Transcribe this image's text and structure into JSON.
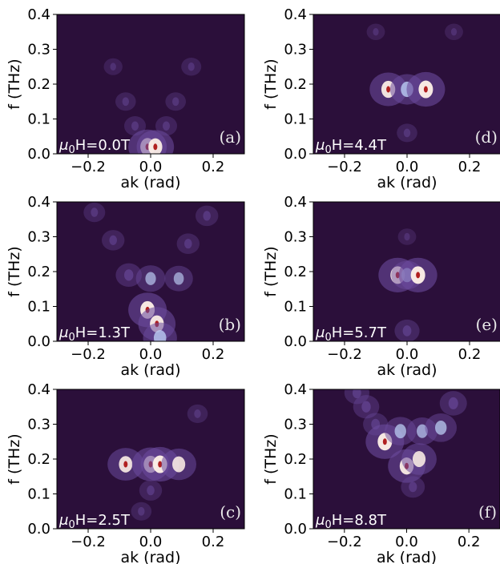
{
  "chart_data": [
    {
      "type": "heatmap",
      "panel": "(a)",
      "field": "0.0T",
      "xlabel": "ak (rad)",
      "ylabel": "f (THz)",
      "xlim": [
        -0.3,
        0.3
      ],
      "ylim": [
        0.0,
        0.4
      ],
      "xticks": [
        "−0.2",
        "0.0",
        "0.2"
      ],
      "yticks": [
        "0.0",
        "0.1",
        "0.2",
        "0.3",
        "0.4"
      ],
      "peaks": [
        {
          "x": -0.01,
          "y": 0.02,
          "intensity": 1.0
        },
        {
          "x": 0.015,
          "y": 0.02,
          "intensity": 0.95
        },
        {
          "x": -0.05,
          "y": 0.08,
          "intensity": 0.25
        },
        {
          "x": 0.05,
          "y": 0.08,
          "intensity": 0.25
        },
        {
          "x": -0.08,
          "y": 0.15,
          "intensity": 0.2
        },
        {
          "x": 0.08,
          "y": 0.15,
          "intensity": 0.2
        },
        {
          "x": 0.13,
          "y": 0.25,
          "intensity": 0.18
        },
        {
          "x": -0.12,
          "y": 0.25,
          "intensity": 0.12
        }
      ]
    },
    {
      "type": "heatmap",
      "panel": "(b)",
      "field": "1.3T",
      "xlabel": "ak (rad)",
      "ylabel": "f (THz)",
      "xlim": [
        -0.3,
        0.3
      ],
      "ylim": [
        0.0,
        0.4
      ],
      "xticks": [
        "−0.2",
        "0.0",
        "0.2"
      ],
      "yticks": [
        "0.0",
        "0.1",
        "0.2",
        "0.3",
        "0.4"
      ],
      "peaks": [
        {
          "x": -0.01,
          "y": 0.09,
          "intensity": 1.0
        },
        {
          "x": 0.02,
          "y": 0.05,
          "intensity": 0.95
        },
        {
          "x": 0.03,
          "y": 0.01,
          "intensity": 0.8
        },
        {
          "x": -0.07,
          "y": 0.19,
          "intensity": 0.45
        },
        {
          "x": 0.0,
          "y": 0.18,
          "intensity": 0.6
        },
        {
          "x": 0.09,
          "y": 0.18,
          "intensity": 0.55
        },
        {
          "x": -0.12,
          "y": 0.29,
          "intensity": 0.3
        },
        {
          "x": 0.12,
          "y": 0.28,
          "intensity": 0.3
        },
        {
          "x": 0.18,
          "y": 0.36,
          "intensity": 0.3
        },
        {
          "x": -0.18,
          "y": 0.37,
          "intensity": 0.25
        }
      ]
    },
    {
      "type": "heatmap",
      "panel": "(c)",
      "field": "2.5T",
      "xlabel": "ak (rad)",
      "ylabel": "f (THz)",
      "xlim": [
        -0.3,
        0.3
      ],
      "ylim": [
        0.0,
        0.4
      ],
      "xticks": [
        "−0.2",
        "0.0",
        "0.2"
      ],
      "yticks": [
        "0.0",
        "0.1",
        "0.2",
        "0.3",
        "0.4"
      ],
      "peaks": [
        {
          "x": -0.08,
          "y": 0.185,
          "intensity": 0.9
        },
        {
          "x": 0.0,
          "y": 0.185,
          "intensity": 0.95
        },
        {
          "x": 0.03,
          "y": 0.185,
          "intensity": 1.0
        },
        {
          "x": 0.09,
          "y": 0.185,
          "intensity": 0.85
        },
        {
          "x": 0.0,
          "y": 0.11,
          "intensity": 0.3
        },
        {
          "x": -0.03,
          "y": 0.05,
          "intensity": 0.2
        },
        {
          "x": 0.15,
          "y": 0.33,
          "intensity": 0.2
        }
      ]
    },
    {
      "type": "heatmap",
      "panel": "(d)",
      "field": "4.4T",
      "xlabel": "ak (rad)",
      "ylabel": "f (THz)",
      "xlim": [
        -0.3,
        0.3
      ],
      "ylim": [
        0.0,
        0.4
      ],
      "xticks": [
        "−0.2",
        "0.0",
        "0.2"
      ],
      "yticks": [
        "0.0",
        "0.1",
        "0.2",
        "0.3",
        "0.4"
      ],
      "peaks": [
        {
          "x": -0.06,
          "y": 0.185,
          "intensity": 0.95
        },
        {
          "x": 0.0,
          "y": 0.185,
          "intensity": 0.8
        },
        {
          "x": 0.06,
          "y": 0.185,
          "intensity": 1.0
        },
        {
          "x": 0.0,
          "y": 0.06,
          "intensity": 0.2
        },
        {
          "x": -0.1,
          "y": 0.35,
          "intensity": 0.1
        },
        {
          "x": 0.15,
          "y": 0.35,
          "intensity": 0.1
        }
      ]
    },
    {
      "type": "heatmap",
      "panel": "(e)",
      "field": "5.7T",
      "xlabel": "ak (rad)",
      "ylabel": "f (THz)",
      "xlim": [
        -0.3,
        0.3
      ],
      "ylim": [
        0.0,
        0.4
      ],
      "xticks": [
        "−0.2",
        "0.0",
        "0.2"
      ],
      "yticks": [
        "0.0",
        "0.1",
        "0.2",
        "0.3",
        "0.4"
      ],
      "peaks": [
        {
          "x": -0.03,
          "y": 0.19,
          "intensity": 1.0
        },
        {
          "x": 0.0,
          "y": 0.19,
          "intensity": 0.7
        },
        {
          "x": 0.035,
          "y": 0.19,
          "intensity": 1.0
        },
        {
          "x": 0.0,
          "y": 0.03,
          "intensity": 0.4
        },
        {
          "x": 0.0,
          "y": 0.3,
          "intensity": 0.1
        }
      ]
    },
    {
      "type": "heatmap",
      "panel": "(f)",
      "field": "8.8T",
      "xlabel": "ak (rad)",
      "ylabel": "f (THz)",
      "xlim": [
        -0.3,
        0.3
      ],
      "ylim": [
        0.0,
        0.4
      ],
      "xticks": [
        "−0.2",
        "0.0",
        "0.2"
      ],
      "yticks": [
        "0.0",
        "0.1",
        "0.2",
        "0.3",
        "0.4"
      ],
      "peaks": [
        {
          "x": -0.07,
          "y": 0.25,
          "intensity": 1.0
        },
        {
          "x": 0.0,
          "y": 0.18,
          "intensity": 0.95
        },
        {
          "x": 0.04,
          "y": 0.2,
          "intensity": 0.85
        },
        {
          "x": -0.02,
          "y": 0.28,
          "intensity": 0.7
        },
        {
          "x": 0.05,
          "y": 0.28,
          "intensity": 0.65
        },
        {
          "x": 0.11,
          "y": 0.29,
          "intensity": 0.7
        },
        {
          "x": -0.13,
          "y": 0.35,
          "intensity": 0.45
        },
        {
          "x": 0.15,
          "y": 0.36,
          "intensity": 0.5
        },
        {
          "x": -0.16,
          "y": 0.39,
          "intensity": 0.4
        },
        {
          "x": 0.02,
          "y": 0.12,
          "intensity": 0.35
        },
        {
          "x": -0.1,
          "y": 0.3,
          "intensity": 0.4
        }
      ]
    }
  ],
  "colors": {
    "background": "#2b0f3a",
    "mid": "#6a4a9c",
    "high": "#b8c8f0",
    "peak": "#fff2e8",
    "hot": "#b02020"
  }
}
